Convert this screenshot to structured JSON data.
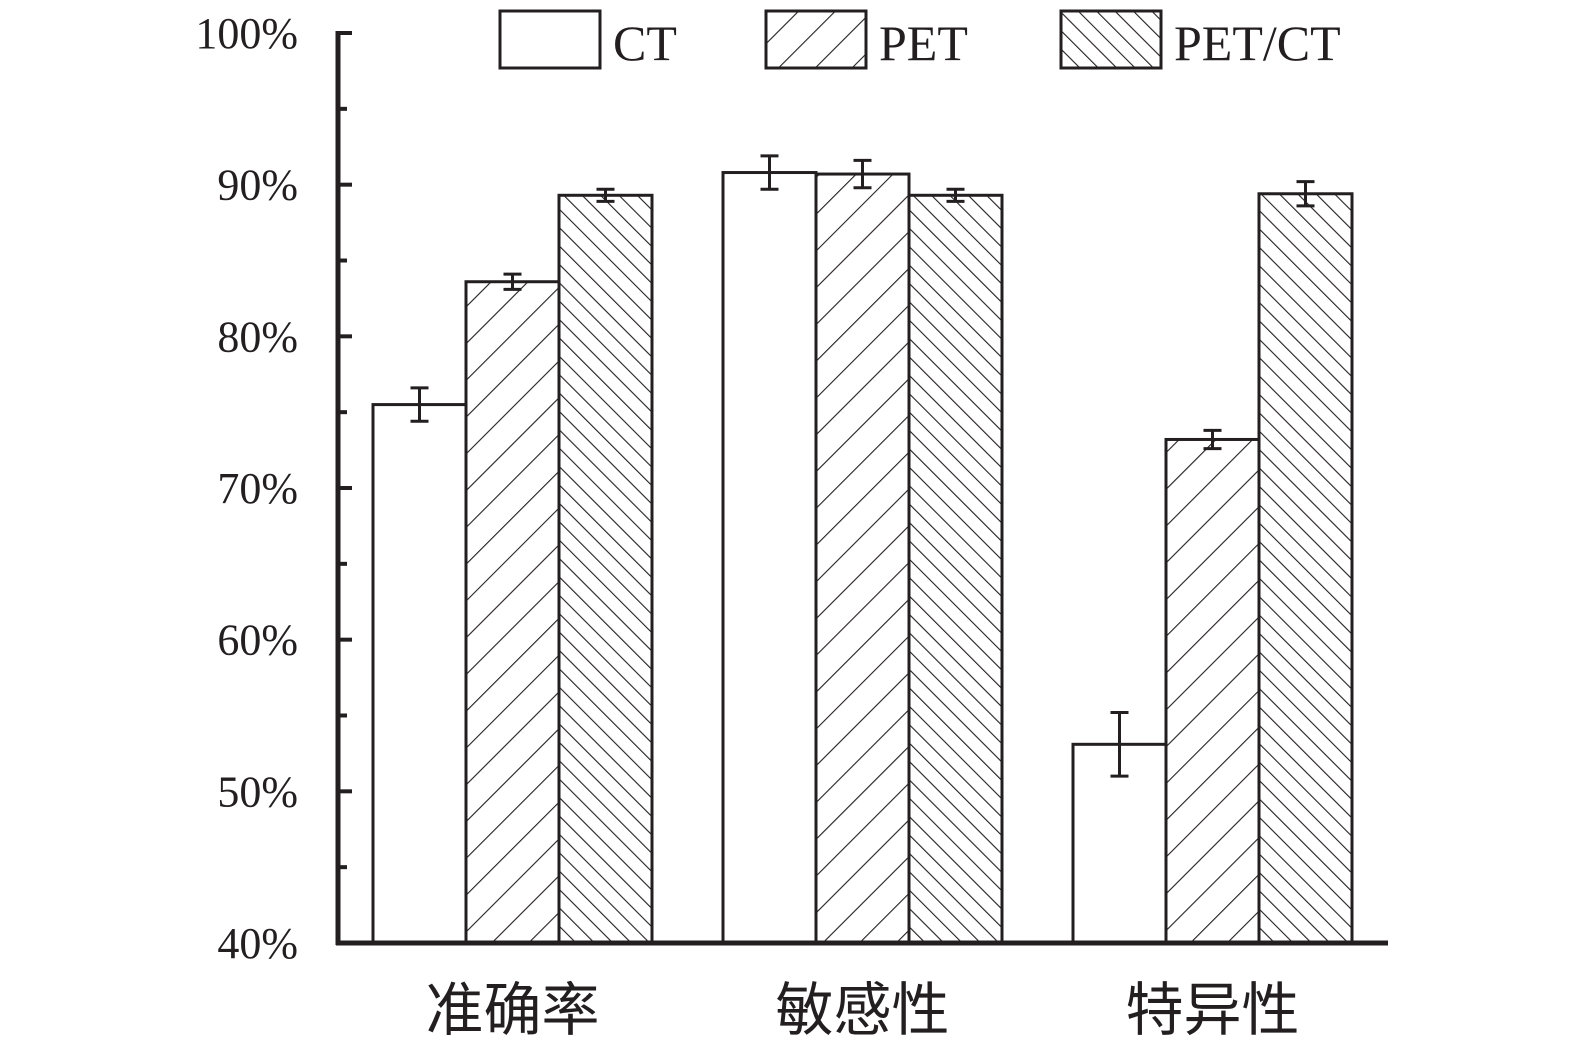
{
  "chart_data": {
    "type": "bar",
    "categories": [
      "准确率",
      "敏感性",
      "特异性"
    ],
    "series": [
      {
        "name": "CT",
        "pattern": "none",
        "values": [
          75.5,
          90.8,
          53.1
        ],
        "errors": [
          1.1,
          1.1,
          2.1
        ]
      },
      {
        "name": "PET",
        "pattern": "diagonal-forward",
        "values": [
          83.6,
          90.7,
          73.2
        ],
        "errors": [
          0.5,
          0.9,
          0.6
        ]
      },
      {
        "name": "PET/CT",
        "pattern": "diagonal-backward",
        "values": [
          89.3,
          89.3,
          89.4
        ],
        "errors": [
          0.4,
          0.4,
          0.8
        ]
      }
    ],
    "yticks": [
      "40%",
      "50%",
      "60%",
      "70%",
      "80%",
      "90%",
      "100%"
    ],
    "ylim": [
      40,
      100
    ],
    "title": "",
    "xlabel": "",
    "ylabel": "",
    "grid": false,
    "legend_position": "top"
  },
  "colors": {
    "ink": "#231f20",
    "fill": "#ffffff"
  }
}
